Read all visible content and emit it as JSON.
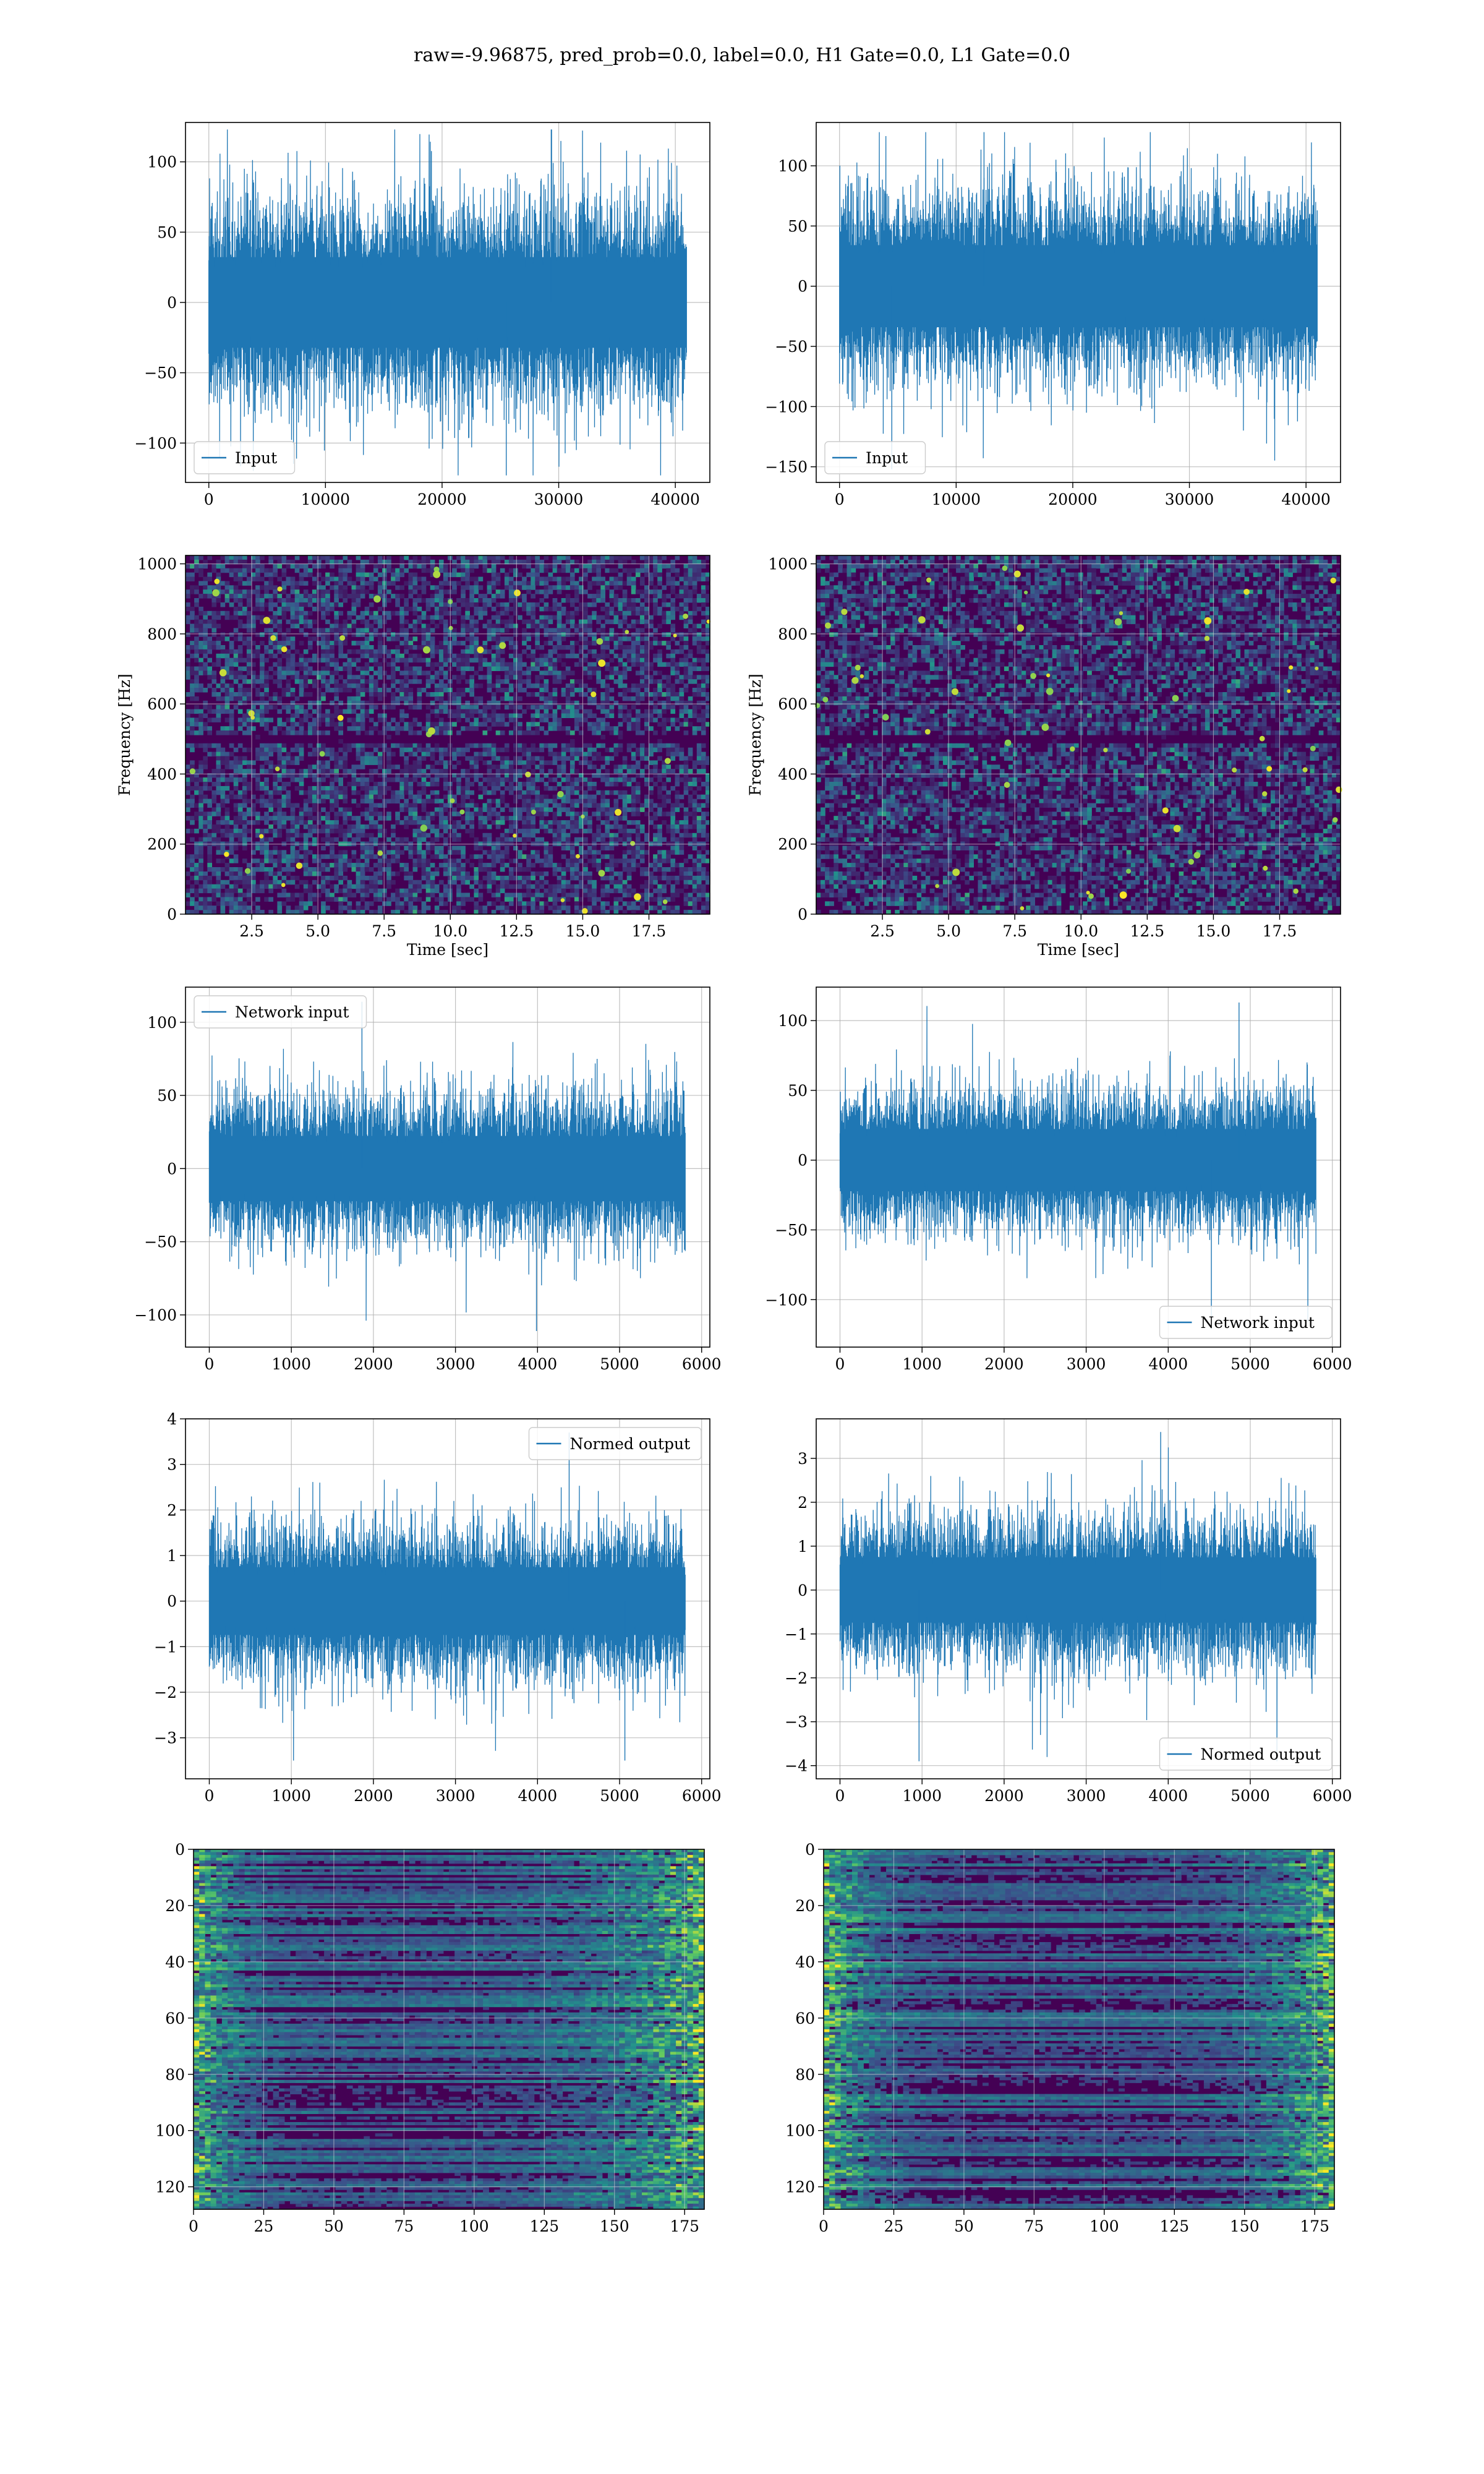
{
  "figure": {
    "suptitle": "raw=-9.96875, pred_prob=0.0, label=0.0, H1 Gate=0.0, L1 Gate=0.0"
  },
  "colors": {
    "line": "#1f77b4",
    "grid": "#b0b0b0",
    "spine": "#000000",
    "viridis_low": "#440154",
    "viridis_high": "#fde725"
  },
  "chart_data": [
    {
      "id": "r0c0",
      "type": "line",
      "title": "",
      "xlabel": "",
      "ylabel": "",
      "xlim": [
        -2000,
        42960
      ],
      "ylim": [
        -128,
        128
      ],
      "xticks": [
        0,
        10000,
        20000,
        30000,
        40000
      ],
      "yticks": [
        -100,
        -50,
        0,
        50,
        100
      ],
      "grid": true,
      "legend": "lower left",
      "series": [
        {
          "name": "Input",
          "n_samples": 40960,
          "x_range": [
            0,
            40960
          ],
          "center": 0,
          "envelope_typical": [
            -52,
            52
          ],
          "extremes": [
            -123,
            123
          ]
        }
      ]
    },
    {
      "id": "r0c1",
      "type": "line",
      "title": "",
      "xlabel": "",
      "ylabel": "",
      "xlim": [
        -2000,
        42960
      ],
      "ylim": [
        -163,
        136
      ],
      "xticks": [
        0,
        10000,
        20000,
        30000,
        40000
      ],
      "yticks": [
        -150,
        -100,
        -50,
        0,
        50,
        100
      ],
      "grid": true,
      "legend": "lower left",
      "series": [
        {
          "name": "Input",
          "n_samples": 40960,
          "x_range": [
            0,
            40960
          ],
          "center": 0,
          "envelope_typical": [
            -55,
            55
          ],
          "extremes": [
            -152,
            128
          ]
        }
      ]
    },
    {
      "id": "r1c0",
      "type": "heatmap",
      "title": "",
      "xlabel": "Time [sec]",
      "ylabel": "Frequency [Hz]",
      "xlim": [
        0,
        19.8
      ],
      "ylim": [
        0,
        1024
      ],
      "xticks": [
        2.5,
        5.0,
        7.5,
        10.0,
        12.5,
        15.0,
        17.5
      ],
      "yticks": [
        0,
        200,
        400,
        600,
        800,
        1000
      ],
      "grid": true,
      "colormap": "viridis",
      "dark_bands_hz": [
        500
      ]
    },
    {
      "id": "r1c1",
      "type": "heatmap",
      "title": "",
      "xlabel": "Time [sec]",
      "ylabel": "Frequency [Hz]",
      "xlim": [
        0,
        19.8
      ],
      "ylim": [
        0,
        1024
      ],
      "xticks": [
        2.5,
        5.0,
        7.5,
        10.0,
        12.5,
        15.0,
        17.5
      ],
      "yticks": [
        0,
        200,
        400,
        600,
        800,
        1000
      ],
      "grid": true,
      "colormap": "viridis",
      "dark_bands_hz": [
        500
      ]
    },
    {
      "id": "r2c0",
      "type": "line",
      "title": "",
      "xlabel": "",
      "ylabel": "",
      "xlim": [
        -290,
        6100
      ],
      "ylim": [
        -122,
        124
      ],
      "xticks": [
        0,
        1000,
        2000,
        3000,
        4000,
        5000,
        6000
      ],
      "yticks": [
        -100,
        -50,
        0,
        50,
        100
      ],
      "grid": true,
      "legend": "upper left",
      "series": [
        {
          "name": "Network input",
          "n_samples": 5800,
          "x_range": [
            0,
            5800
          ],
          "center": 0,
          "envelope_typical": [
            -36,
            36
          ],
          "extremes": [
            -111,
            114
          ]
        }
      ]
    },
    {
      "id": "r2c1",
      "type": "line",
      "title": "",
      "xlabel": "",
      "ylabel": "",
      "xlim": [
        -290,
        6100
      ],
      "ylim": [
        -134,
        124
      ],
      "xticks": [
        0,
        1000,
        2000,
        3000,
        4000,
        5000,
        6000
      ],
      "yticks": [
        -100,
        -50,
        0,
        50,
        100
      ],
      "grid": true,
      "legend": "lower right",
      "series": [
        {
          "name": "Network input",
          "n_samples": 5800,
          "x_range": [
            0,
            5800
          ],
          "center": 0,
          "envelope_typical": [
            -36,
            36
          ],
          "extremes": [
            -121,
            113
          ]
        }
      ]
    },
    {
      "id": "r3c0",
      "type": "line",
      "title": "",
      "xlabel": "",
      "ylabel": "",
      "xlim": [
        -290,
        6100
      ],
      "ylim": [
        -3.9,
        4.0
      ],
      "xticks": [
        0,
        1000,
        2000,
        3000,
        4000,
        5000,
        6000
      ],
      "yticks": [
        -3,
        -2,
        -1,
        0,
        1,
        2,
        3,
        4
      ],
      "grid": true,
      "legend": "upper right",
      "series": [
        {
          "name": "Normed output",
          "n_samples": 5800,
          "x_range": [
            0,
            5800
          ],
          "center": 0,
          "envelope_typical": [
            -1.2,
            1.2
          ],
          "extremes": [
            -3.5,
            3.7
          ]
        }
      ]
    },
    {
      "id": "r3c1",
      "type": "line",
      "title": "",
      "xlabel": "",
      "ylabel": "",
      "xlim": [
        -290,
        6100
      ],
      "ylim": [
        -4.3,
        3.9
      ],
      "xticks": [
        0,
        1000,
        2000,
        3000,
        4000,
        5000,
        6000
      ],
      "yticks": [
        -4,
        -3,
        -2,
        -1,
        0,
        1,
        2,
        3
      ],
      "grid": true,
      "legend": "lower right",
      "series": [
        {
          "name": "Normed output",
          "n_samples": 5800,
          "x_range": [
            0,
            5800
          ],
          "center": 0,
          "envelope_typical": [
            -1.2,
            1.2
          ],
          "extremes": [
            -3.9,
            3.6
          ]
        }
      ]
    },
    {
      "id": "r4c0",
      "type": "heatmap",
      "title": "",
      "xlabel": "",
      "ylabel": "",
      "xlim": [
        0,
        182
      ],
      "ylim": [
        128,
        0
      ],
      "xticks": [
        0,
        25,
        50,
        75,
        100,
        125,
        150,
        175
      ],
      "yticks": [
        0,
        20,
        40,
        60,
        80,
        100,
        120
      ],
      "grid": true,
      "colormap": "viridis",
      "y_inverted": true
    },
    {
      "id": "r4c1",
      "type": "heatmap",
      "title": "",
      "xlabel": "",
      "ylabel": "",
      "xlim": [
        0,
        182
      ],
      "ylim": [
        128,
        0
      ],
      "xticks": [
        0,
        25,
        50,
        75,
        100,
        125,
        150,
        175
      ],
      "yticks": [
        0,
        20,
        40,
        60,
        80,
        100,
        120
      ],
      "grid": true,
      "colormap": "viridis",
      "y_inverted": true
    }
  ]
}
